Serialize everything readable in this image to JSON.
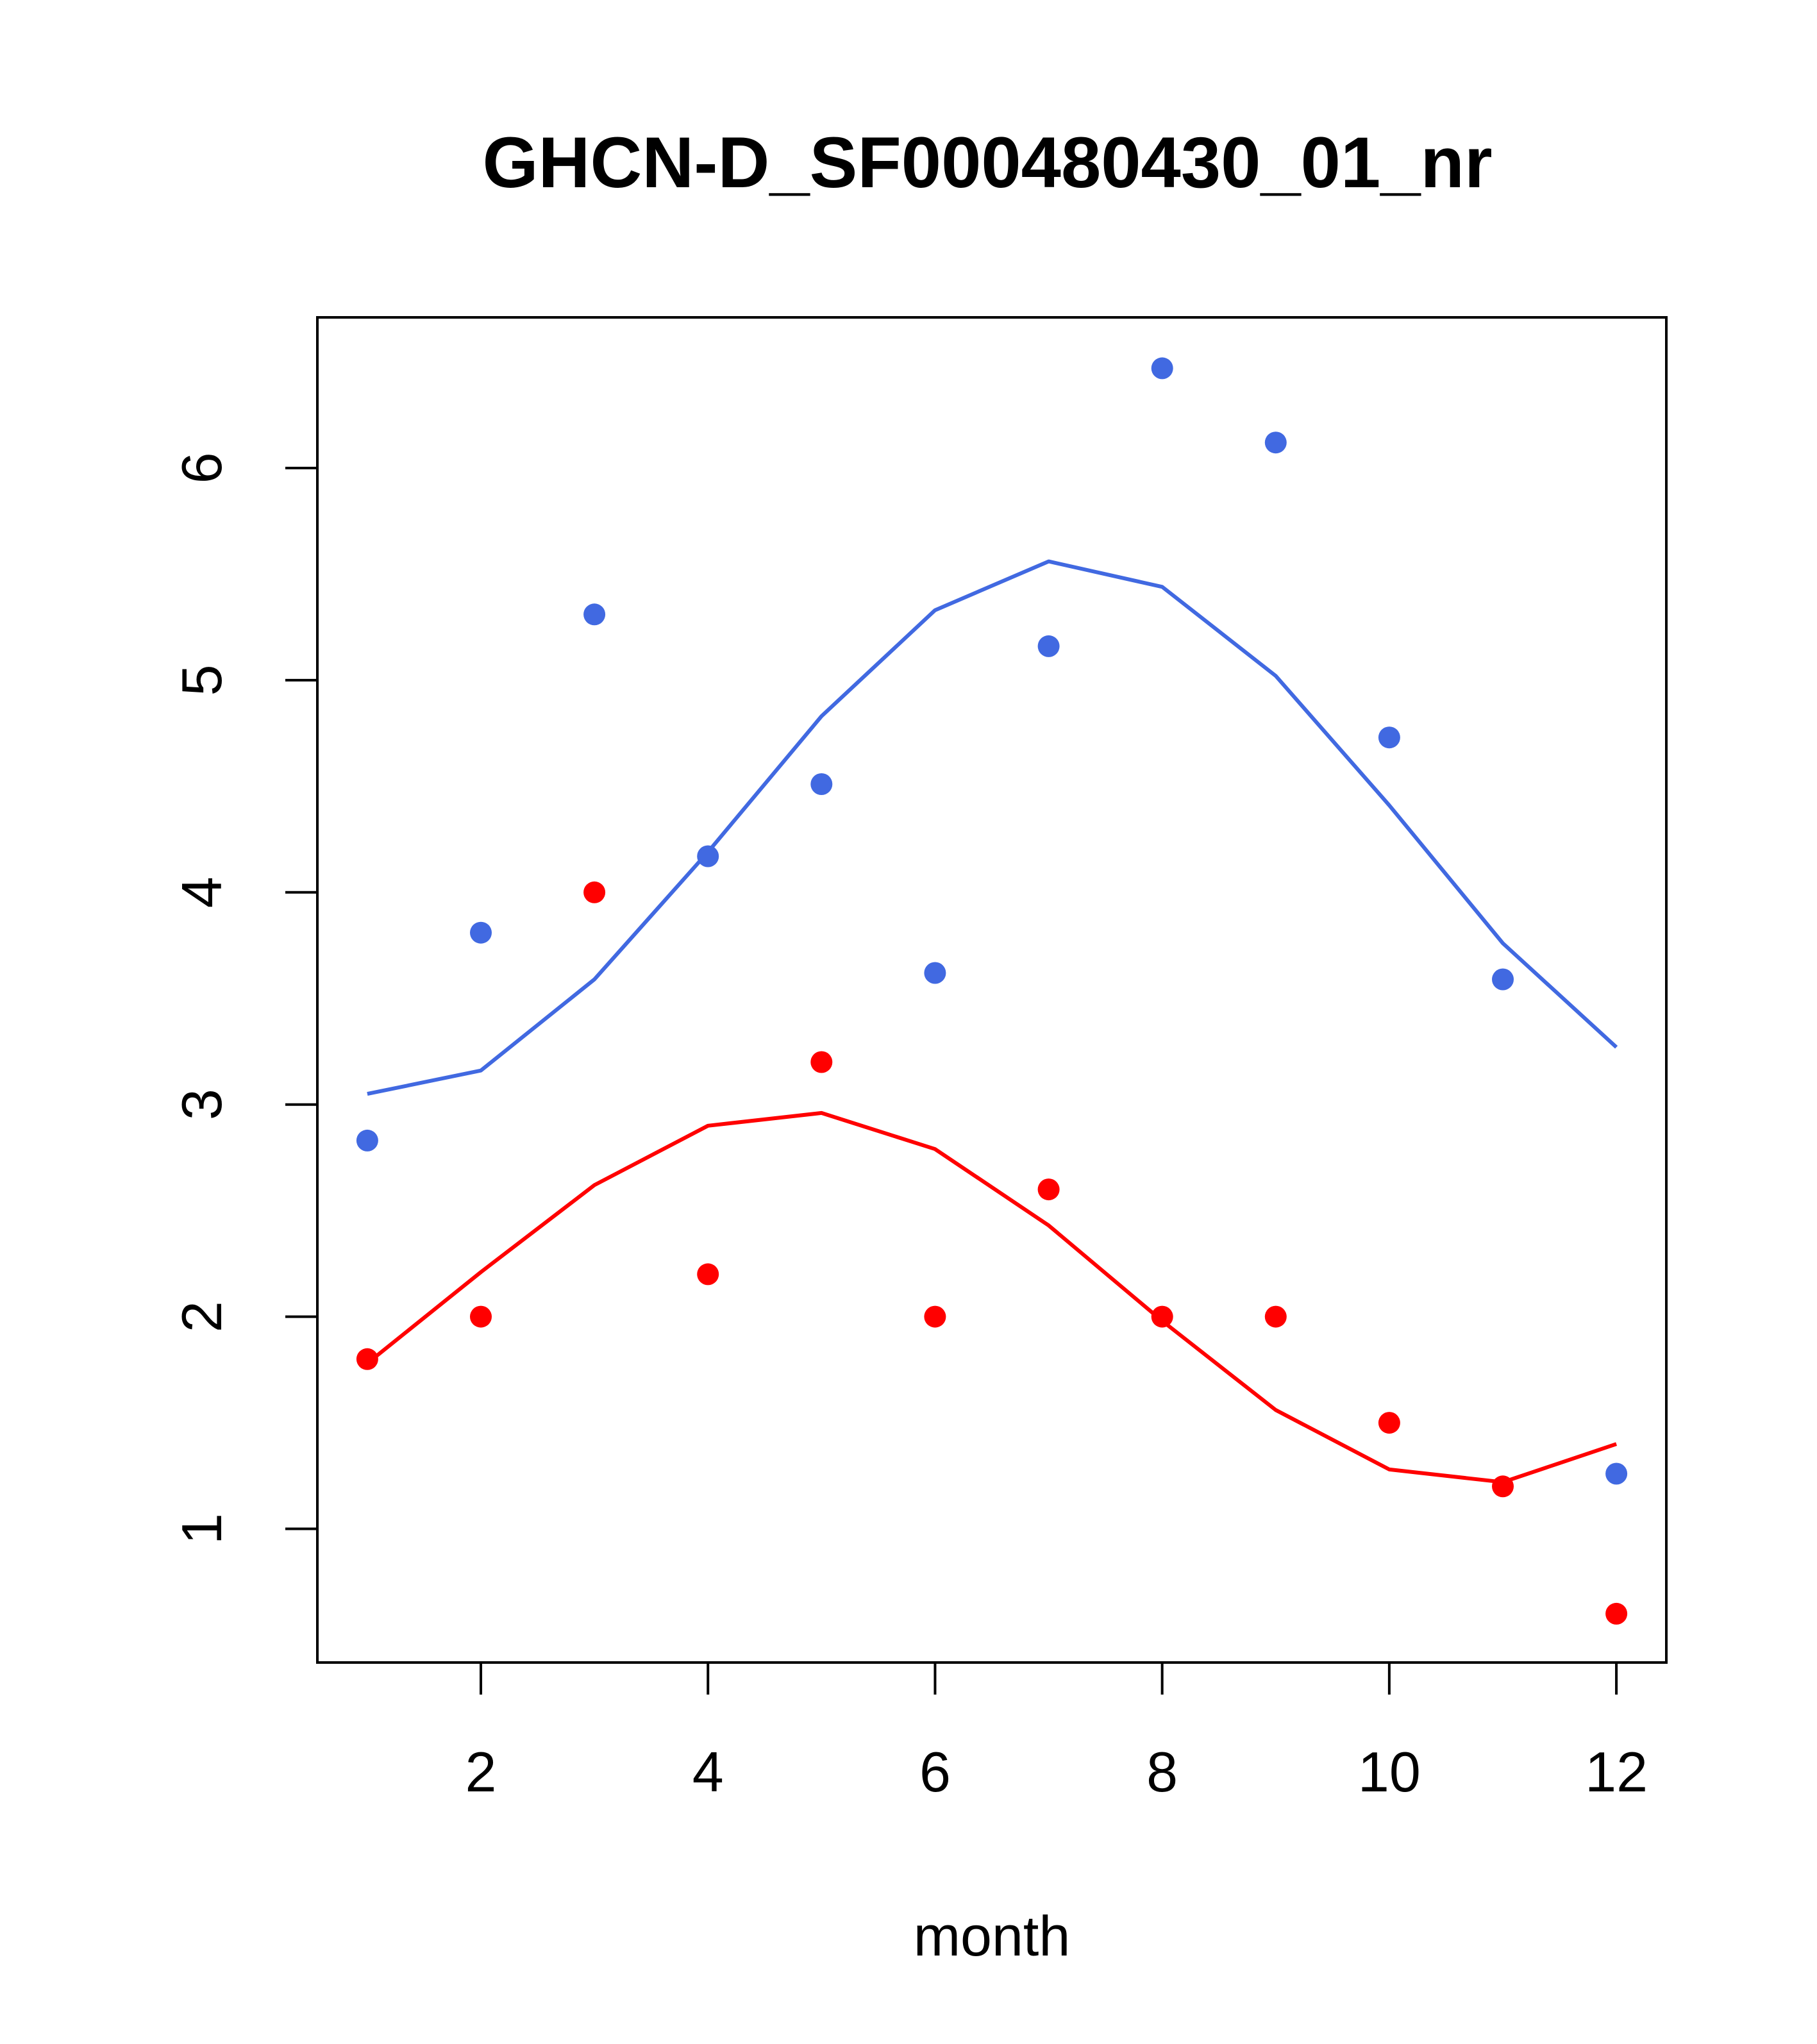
{
  "chart_data": {
    "type": "scatter",
    "title": "GHCN-D_SF000480430_01_nr",
    "xlabel": "month",
    "ylabel": "",
    "xlim": [
      0.56,
      12.44
    ],
    "ylim": [
      0.37,
      6.71
    ],
    "x_ticks": [
      "2",
      "4",
      "6",
      "8",
      "10",
      "12"
    ],
    "y_ticks": [
      "1",
      "2",
      "3",
      "4",
      "5",
      "6"
    ],
    "grid": false,
    "legend": "none",
    "series": [
      {
        "name": "blue points",
        "kind": "points",
        "color": "#4169E1",
        "x": [
          1,
          2,
          3,
          4,
          5,
          6,
          7,
          8,
          9,
          10,
          11,
          12
        ],
        "values": [
          2.83,
          3.81,
          5.31,
          4.17,
          4.51,
          3.62,
          5.16,
          6.47,
          6.12,
          4.73,
          3.59,
          1.26
        ]
      },
      {
        "name": "blue fit",
        "kind": "line",
        "color": "#4169E1",
        "x": [
          1,
          2,
          3,
          4,
          5,
          6,
          7,
          8,
          9,
          10,
          11,
          12
        ],
        "values": [
          3.05,
          3.16,
          3.59,
          4.19,
          4.83,
          5.33,
          5.56,
          5.44,
          5.02,
          4.41,
          3.76,
          3.27
        ]
      },
      {
        "name": "red points",
        "kind": "points",
        "color": "#FF0000",
        "x": [
          1,
          2,
          3,
          4,
          5,
          6,
          7,
          8,
          9,
          10,
          11,
          12
        ],
        "values": [
          1.8,
          2.0,
          4.0,
          2.2,
          3.2,
          2.0,
          2.6,
          2.0,
          2.0,
          1.5,
          1.2,
          0.6
        ]
      },
      {
        "name": "red fit",
        "kind": "line",
        "color": "#FF0000",
        "x": [
          1,
          2,
          3,
          4,
          5,
          6,
          7,
          8,
          9,
          10,
          11,
          12
        ],
        "values": [
          1.78,
          2.21,
          2.62,
          2.9,
          2.96,
          2.79,
          2.43,
          1.98,
          1.56,
          1.28,
          1.22,
          1.4
        ]
      }
    ]
  }
}
